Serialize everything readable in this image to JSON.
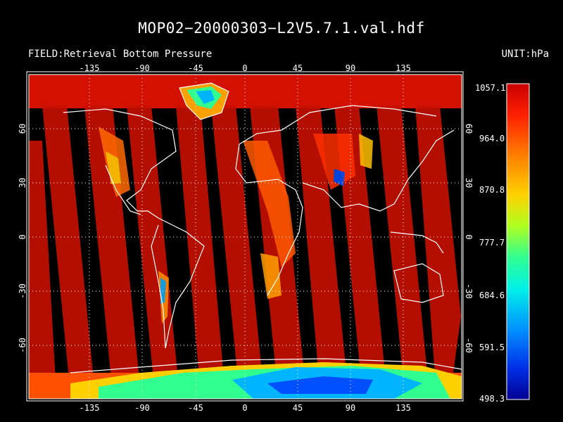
{
  "title": "MOP02−20000303−L2V5.7.1.val.hdf",
  "field_label": "FIELD:Retrieval Bottom Pressure",
  "unit_label": "UNIT:hPa",
  "map": {
    "projection": "cylindrical equidistant",
    "lon_range": [
      -180,
      180
    ],
    "lat_range": [
      -80,
      80
    ],
    "lon_ticks": [
      "-135",
      "-90",
      "-45",
      "0",
      "45",
      "90",
      "135"
    ],
    "lat_ticks": [
      "60",
      "30",
      "0",
      "-30",
      "-60"
    ],
    "gridlines": "dotted"
  },
  "colorbar": {
    "min": 498.3,
    "max": 1057.1,
    "tick_labels": [
      "1057.1",
      "964.0",
      "870.8",
      "777.7",
      "684.6",
      "591.5",
      "498.3"
    ],
    "colors": [
      "#d40000",
      "#ff3a00",
      "#ff8c00",
      "#ffd700",
      "#c8ff00",
      "#40ff80",
      "#00ffd8",
      "#00b4ff",
      "#0050ff",
      "#0000b4"
    ]
  }
}
